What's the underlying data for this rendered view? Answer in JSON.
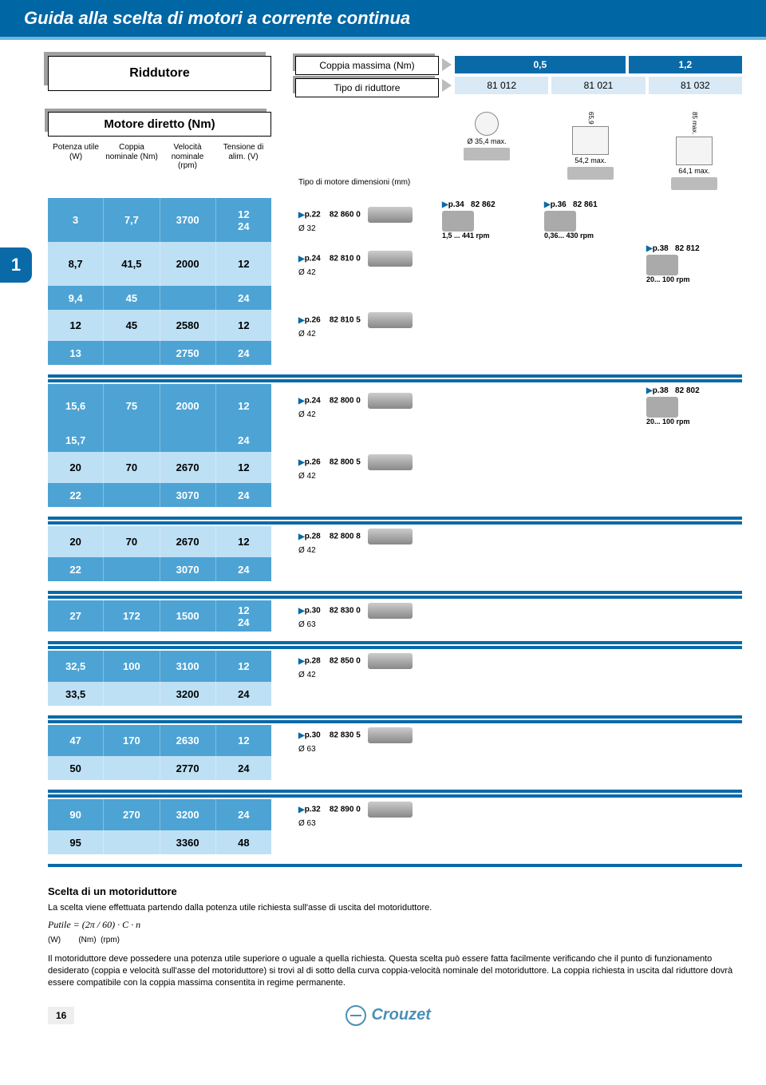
{
  "colors": {
    "title_bg": "#0066a4",
    "accent_blue": "#0a6aa8",
    "med_blue": "#4da3d4",
    "light_blue": "#bde0f5",
    "pale_blue": "#d9e9f5"
  },
  "title": "Guida alla scelta di motori a corrente continua",
  "riduttore_label": "Riddutore",
  "coppia_massima_label": "Coppia massima (Nm)",
  "tipo_riduttore_label": "Tipo di riduttore",
  "coppia_values": [
    "0,5",
    "1,2"
  ],
  "tipo_values": [
    "81 012",
    "81 021",
    "81 032"
  ],
  "motore_diretto_label": "Motore diretto (Nm)",
  "col_headers": [
    "Potenza utile (W)",
    "Coppia nominale (Nm)",
    "Velocità nominale (rpm)",
    "Tensione di alim. (V)"
  ],
  "tipo_motore_label": "Tipo di motore dimensioni (mm)",
  "dim_labels": [
    "Ø 35,4 max.",
    "65,9",
    "54,2 max.",
    "85 max.",
    "64,1 max."
  ],
  "side_tab": "1",
  "blocks": [
    {
      "sep_before": false,
      "rows": [
        {
          "bg": "bg-blue-med",
          "cells": [
            "3",
            "7,7",
            "3700",
            "12\n24"
          ],
          "motor": {
            "ref": "p.22",
            "code": "82 860 0",
            "dia": "Ø 32"
          },
          "right": [
            {
              "ref": "p.34",
              "code": "82 862",
              "rpm": "1,5 ... 441 rpm"
            },
            {
              "ref": "p.36",
              "code": "82 861",
              "rpm": "0,36... 430 rpm"
            },
            null
          ]
        },
        {
          "bg": "bg-blue-light",
          "cells": [
            "8,7",
            "41,5",
            "2000",
            "12"
          ],
          "motor": {
            "ref": "p.24",
            "code": "82 810 0",
            "dia": "Ø 42"
          },
          "right": [
            null,
            null,
            {
              "ref": "p.38",
              "code": "82 812",
              "rpm": "20... 100 rpm"
            }
          ]
        },
        {
          "bg": "bg-blue-med",
          "cells": [
            "9,4",
            "45",
            "",
            "24"
          ],
          "motor": null,
          "right": [
            null,
            null,
            null
          ]
        },
        {
          "bg": "bg-blue-light",
          "cells": [
            "12",
            "45",
            "2580",
            "12"
          ],
          "motor": {
            "ref": "p.26",
            "code": "82 810 5",
            "dia": "Ø 42"
          },
          "right": [
            null,
            null,
            null
          ]
        },
        {
          "bg": "bg-blue-med",
          "cells": [
            "13",
            "",
            "2750",
            "24"
          ],
          "motor": null,
          "right": [
            null,
            null,
            null
          ]
        }
      ]
    },
    {
      "sep_before": true,
      "rows": [
        {
          "bg": "bg-blue-med",
          "cells": [
            "15,6",
            "75",
            "2000",
            "12"
          ],
          "motor": {
            "ref": "p.24",
            "code": "82 800 0",
            "dia": "Ø 42"
          },
          "right": [
            null,
            null,
            {
              "ref": "p.38",
              "code": "82 802",
              "rpm": "20... 100 rpm"
            }
          ]
        },
        {
          "bg": "bg-blue-med",
          "cells": [
            "15,7",
            "",
            "",
            "24"
          ],
          "motor": null,
          "right": [
            null,
            null,
            null
          ]
        },
        {
          "bg": "bg-blue-light",
          "cells": [
            "20",
            "70",
            "2670",
            "12"
          ],
          "motor": {
            "ref": "p.26",
            "code": "82 800 5",
            "dia": "Ø 42"
          },
          "right": [
            null,
            null,
            null
          ]
        },
        {
          "bg": "bg-blue-med",
          "cells": [
            "22",
            "",
            "3070",
            "24"
          ],
          "motor": null,
          "right": [
            null,
            null,
            null
          ]
        }
      ]
    },
    {
      "sep_before": true,
      "rows": [
        {
          "bg": "bg-blue-light",
          "cells": [
            "20",
            "70",
            "2670",
            "12"
          ],
          "motor": {
            "ref": "p.28",
            "code": "82 800 8",
            "dia": "Ø 42"
          },
          "right": [
            null,
            null,
            null
          ]
        },
        {
          "bg": "bg-blue-med",
          "cells": [
            "22",
            "",
            "3070",
            "24"
          ],
          "motor": null,
          "right": [
            null,
            null,
            null
          ]
        }
      ]
    },
    {
      "sep_before": true,
      "rows": [
        {
          "bg": "bg-blue-med",
          "cells": [
            "27",
            "172",
            "1500",
            "12\n24"
          ],
          "motor": {
            "ref": "p.30",
            "code": "82 830 0",
            "dia": "Ø 63"
          },
          "right": [
            null,
            null,
            null
          ]
        }
      ]
    },
    {
      "sep_before": true,
      "rows": [
        {
          "bg": "bg-blue-med",
          "cells": [
            "32,5",
            "100",
            "3100",
            "12"
          ],
          "motor": {
            "ref": "p.28",
            "code": "82 850 0",
            "dia": "Ø 42"
          },
          "right": [
            null,
            null,
            null
          ]
        },
        {
          "bg": "bg-blue-light",
          "cells": [
            "33,5",
            "",
            "3200",
            "24"
          ],
          "motor": null,
          "right": [
            null,
            null,
            null
          ]
        }
      ]
    },
    {
      "sep_before": true,
      "rows": [
        {
          "bg": "bg-blue-med",
          "cells": [
            "47",
            "170",
            "2630",
            "12"
          ],
          "motor": {
            "ref": "p.30",
            "code": "82 830 5",
            "dia": "Ø 63"
          },
          "right": [
            null,
            null,
            null
          ]
        },
        {
          "bg": "bg-blue-light",
          "cells": [
            "50",
            "",
            "2770",
            "24"
          ],
          "motor": null,
          "right": [
            null,
            null,
            null
          ]
        }
      ]
    },
    {
      "sep_before": true,
      "rows": [
        {
          "bg": "bg-blue-med",
          "cells": [
            "90",
            "270",
            "3200",
            "24"
          ],
          "motor": {
            "ref": "p.32",
            "code": "82 890 0",
            "dia": "Ø 63"
          },
          "right": [
            null,
            null,
            null
          ]
        },
        {
          "bg": "bg-blue-light",
          "cells": [
            "95",
            "",
            "3360",
            "48"
          ],
          "motor": null,
          "right": [
            null,
            null,
            null
          ]
        }
      ]
    }
  ],
  "footer": {
    "heading": "Scelta di un motoriduttore",
    "p1": "La scelta viene effettuata partendo dalla potenza utile richiesta sull'asse di uscita del motoriduttore.",
    "formula": "Putile = (2π / 60) · C · n",
    "units": "(W)        (Nm)  (rpm)",
    "p2": "Il motoriduttore deve possedere una potenza utile superiore o uguale a quella richiesta. Questa scelta può essere fatta facilmente verificando che il punto di funzionamento desiderato (coppia e velocità sull'asse del motoriduttore) si trovi al di sotto della curva coppia-velocità nominale del motoriduttore. La coppia richiesta in uscita dal riduttore dovrà essere compatibile con la coppia massima consentita in regime permanente."
  },
  "page_number": "16",
  "brand": "Crouzet"
}
